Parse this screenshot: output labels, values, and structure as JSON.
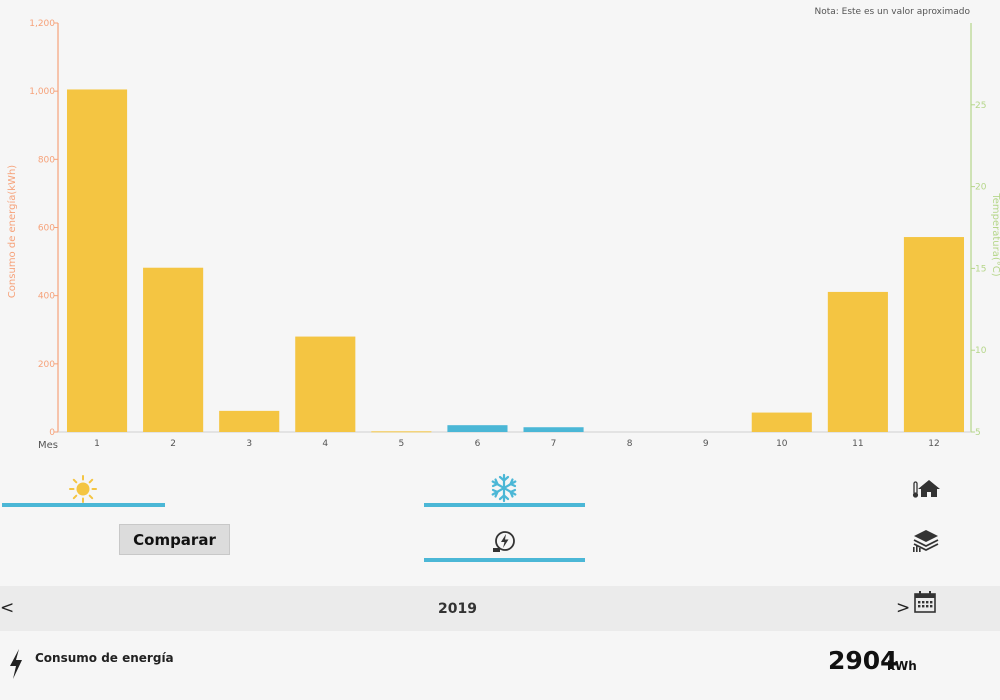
{
  "note": "Nota: Este es un valor aproximado",
  "chart_data": {
    "type": "bar",
    "xlabel": "Mes",
    "ylabel": "Consumo de energía(kWh)",
    "y2label": "Temperatura(°C)",
    "categories": [
      "1",
      "2",
      "3",
      "4",
      "5",
      "6",
      "7",
      "8",
      "9",
      "10",
      "11",
      "12"
    ],
    "series": [
      {
        "values": [
          1005,
          482,
          62,
          280,
          2,
          20,
          14,
          0,
          0,
          57,
          411,
          572
        ],
        "colors": [
          "#f4c542",
          "#f4c542",
          "#f4c542",
          "#f4c542",
          "#f4c542",
          "#4bb7d6",
          "#4bb7d6",
          "#f4c542",
          "#f4c542",
          "#f4c542",
          "#f4c542",
          "#f4c542"
        ]
      }
    ],
    "ylim": [
      0,
      1200
    ],
    "yticks": [
      0,
      200,
      400,
      600,
      800,
      1000,
      1200
    ],
    "ytick_labels": [
      "0",
      "200",
      "400",
      "600",
      "800",
      "1,000",
      "1,200"
    ],
    "y2lim": [
      5,
      30
    ],
    "y2ticks": [
      5,
      10,
      15,
      20,
      25
    ],
    "left_axis_color": "#f6a27a",
    "right_axis_color": "#b5d68a",
    "grid": false
  },
  "modes": {
    "heating_icon": "sun-icon",
    "cooling_icon": "snowflake-icon",
    "home_temp_icon": "thermometer-house-icon",
    "power_icon": "power-icon",
    "layers_icon": "layers-icon"
  },
  "compare_label": "Comparar",
  "year": "2019",
  "nav": {
    "prev": "<",
    "next": ">"
  },
  "summary": {
    "label": "Consumo de energía",
    "value": "2904",
    "unit": "kWh"
  }
}
